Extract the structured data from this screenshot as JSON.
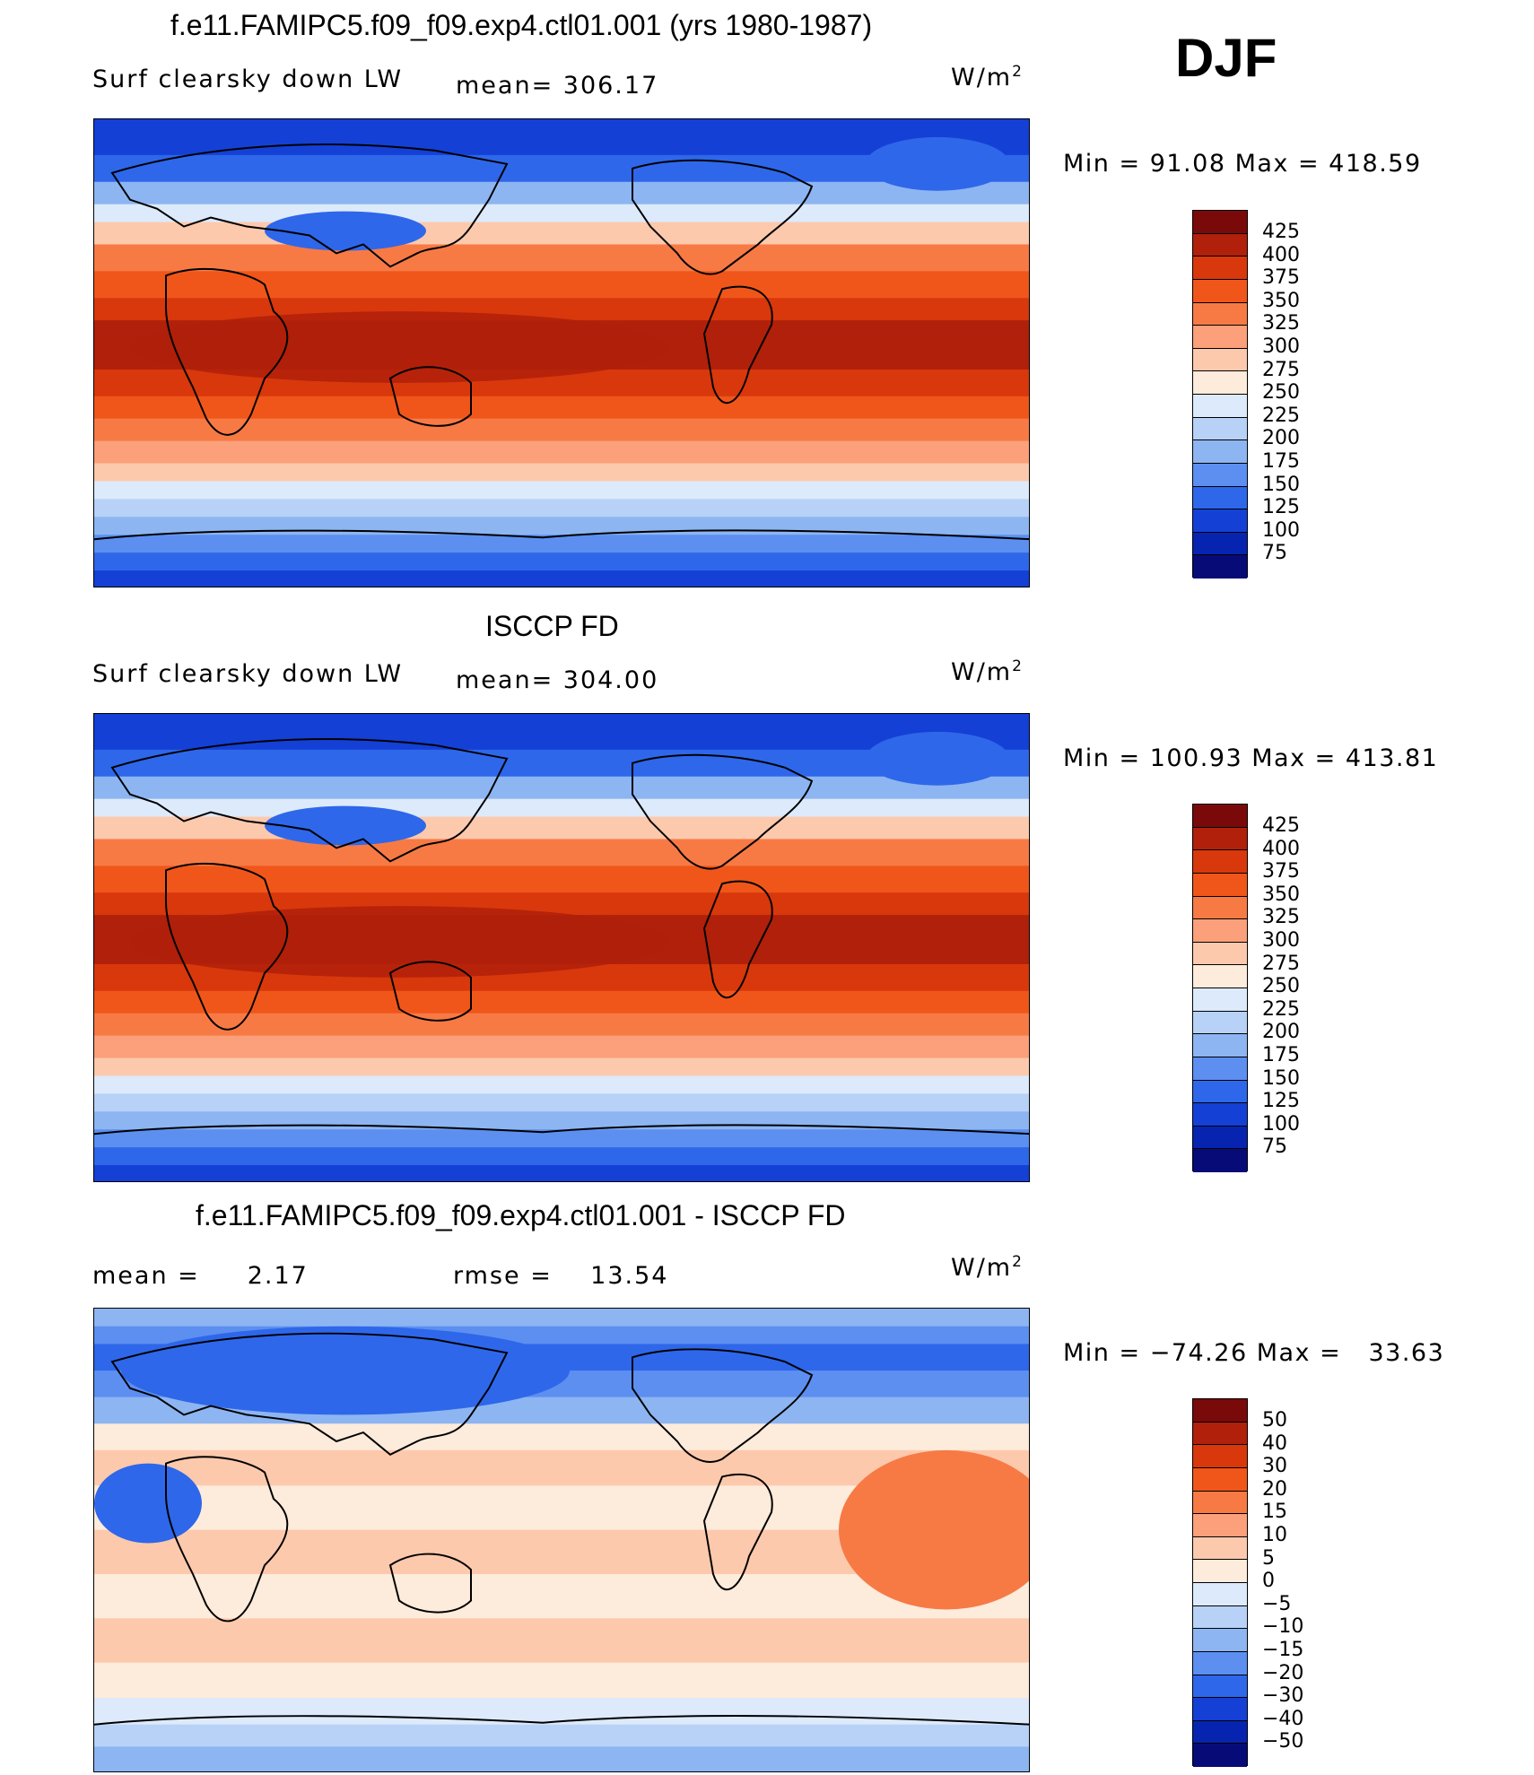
{
  "season": "DJF",
  "units_label": "W/m",
  "units_sup": "2",
  "panels": [
    {
      "title": "f.e11.FAMIPC5.f09_f09.exp4.ctl01.001 (yrs 1980-1987)",
      "left_label": "Surf clearsky down LW",
      "center_label": "mean= 306.17",
      "minmax": "Min =   91.08 Max = 418.59",
      "levels": [
        "425",
        "400",
        "375",
        "350",
        "325",
        "300",
        "275",
        "250",
        "225",
        "200",
        "175",
        "150",
        "125",
        "100",
        "75"
      ]
    },
    {
      "title": "ISCCP FD",
      "left_label": "Surf clearsky down LW",
      "center_label": "mean= 304.00",
      "minmax": "Min = 100.93 Max = 413.81",
      "levels": [
        "425",
        "400",
        "375",
        "350",
        "325",
        "300",
        "275",
        "250",
        "225",
        "200",
        "175",
        "150",
        "125",
        "100",
        "75"
      ]
    },
    {
      "title": "f.e11.FAMIPC5.f09_f09.exp4.ctl01.001 - ISCCP FD",
      "left_label": "mean =     2.17",
      "center_label": "rmse =    13.54",
      "minmax": "Min = −74.26 Max =   33.63",
      "levels": [
        "50",
        "40",
        "30",
        "20",
        "15",
        "10",
        "5",
        "0",
        "−5",
        "−10",
        "−15",
        "−20",
        "−30",
        "−40",
        "−50"
      ]
    }
  ],
  "colormap": [
    "#7a0a0a",
    "#b0200b",
    "#d8380c",
    "#f0561a",
    "#f77a45",
    "#fba07a",
    "#fdc9ad",
    "#fdebdb",
    "#dceafb",
    "#b8d2f7",
    "#8db5f2",
    "#5c8ff0",
    "#2e67ea",
    "#1440d6",
    "#0724b0",
    "#070b78"
  ]
}
